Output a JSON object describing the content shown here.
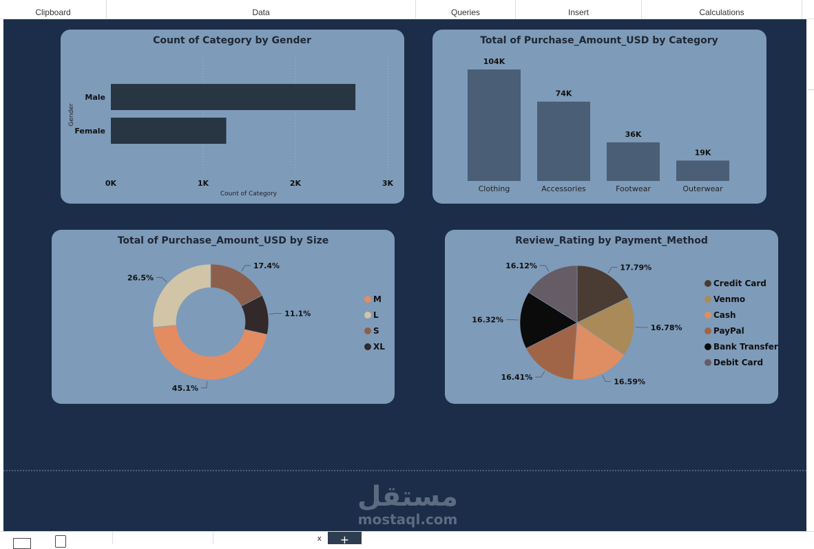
{
  "ribbon": {
    "groups": [
      "Clipboard",
      "Data",
      "Queries",
      "Insert",
      "Calculations"
    ]
  },
  "watermark": {
    "arabic": "مستقل",
    "latin": "mostaql.com"
  },
  "bottom_bar": {
    "close_label": "x",
    "add_label": "+"
  },
  "colors": {
    "canvas": "#1b2d48",
    "card": "#7e9bb9",
    "bar_dark": "#283542",
    "bar_slate": "#4a5e75"
  },
  "chart_data": [
    {
      "type": "bar",
      "orientation": "horizontal",
      "title": "Count of Category by Gender",
      "xlabel": "Count of Category",
      "ylabel": "Gender",
      "categories": [
        "Male",
        "Female"
      ],
      "values": [
        2650,
        1250
      ],
      "xlim": [
        0,
        3000
      ],
      "xticks": [
        "0K",
        "1K",
        "2K",
        "3K"
      ],
      "grid": true
    },
    {
      "type": "bar",
      "title": "Total of Purchase_Amount_USD by Category",
      "categories": [
        "Clothing",
        "Accessories",
        "Footwear",
        "Outerwear"
      ],
      "values": [
        104,
        74,
        36,
        19
      ],
      "data_labels": [
        "104K",
        "74K",
        "36K",
        "19K"
      ]
    },
    {
      "type": "pie",
      "subtype": "donut",
      "title": "Total of Purchase_Amount_USD by Size",
      "labels": [
        "M",
        "L",
        "S",
        "XL"
      ],
      "values": [
        45.1,
        26.5,
        17.4,
        11.1
      ],
      "value_labels": [
        "45.1%",
        "26.5%",
        "17.4%",
        "11.1%"
      ],
      "colors": [
        "#e38c62",
        "#d2c4a6",
        "#8b5f4b",
        "#33292a"
      ],
      "legend": "right"
    },
    {
      "type": "pie",
      "title": "Review_Rating by Payment_Method",
      "labels": [
        "Credit Card",
        "Venmo",
        "Cash",
        "PayPal",
        "Bank Transfer",
        "Debit Card"
      ],
      "values": [
        17.79,
        16.78,
        16.59,
        16.41,
        16.32,
        16.12
      ],
      "value_labels": [
        "17.79%",
        "16.78%",
        "16.59%",
        "16.41%",
        "16.32%",
        "16.12%"
      ],
      "colors": [
        "#4a3b33",
        "#a98a58",
        "#df8d62",
        "#a06546",
        "#0b0b0b",
        "#655c66"
      ],
      "legend": "right"
    }
  ]
}
